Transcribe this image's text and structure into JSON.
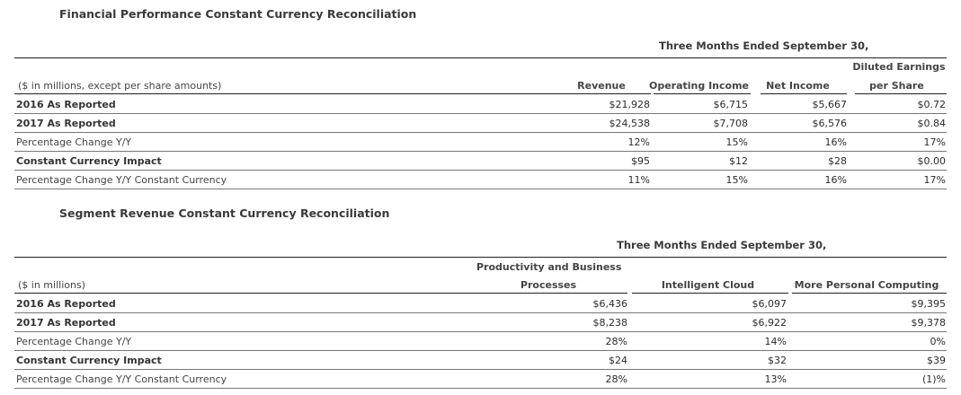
{
  "fin": {
    "title": "Financial Performance Constant Currency Reconciliation",
    "period": "Three Months Ended September 30,",
    "units": "($ in millions, except per share amounts)",
    "cols": [
      "Revenue",
      "Operating Income",
      "Net Income",
      "Diluted Earnings",
      "per Share"
    ],
    "rows": [
      {
        "label": "2016 As Reported",
        "values": [
          "$21,928",
          "$6,715",
          "$5,667",
          "$0.72"
        ]
      },
      {
        "label": "2017 As Reported",
        "values": [
          "$24,538",
          "$7,708",
          "$6,576",
          "$0.84"
        ]
      },
      {
        "label": "Percentage Change Y/Y",
        "values": [
          "12%",
          "15%",
          "16%",
          "17%"
        ]
      },
      {
        "label": "Constant Currency Impact",
        "values": [
          "$95",
          "$12",
          "$28",
          "$0.00"
        ]
      },
      {
        "label": "Percentage Change Y/Y Constant Currency",
        "values": [
          "11%",
          "15%",
          "16%",
          "17%"
        ]
      }
    ]
  },
  "seg": {
    "title": "Segment Revenue Constant Currency Reconciliation",
    "period": "Three Months Ended September 30,",
    "units": "($ in millions)",
    "cols": [
      "Productivity and Business",
      "Processes",
      "Intelligent Cloud",
      "More Personal Computing"
    ],
    "rows": [
      {
        "label": "2016 As Reported",
        "values": [
          "$6,436",
          "$6,097",
          "$9,395"
        ]
      },
      {
        "label": "2017 As Reported",
        "values": [
          "$8,238",
          "$6,922",
          "$9,378"
        ]
      },
      {
        "label": "Percentage Change Y/Y",
        "values": [
          "28%",
          "14%",
          "0%"
        ]
      },
      {
        "label": "Constant Currency Impact",
        "values": [
          "$24",
          "$32",
          "$39"
        ]
      },
      {
        "label": "Percentage Change Y/Y Constant Currency",
        "values": [
          "28%",
          "13%",
          "(1)%"
        ]
      }
    ]
  }
}
